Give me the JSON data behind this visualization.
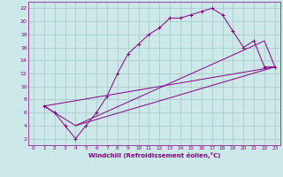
{
  "xlabel": "Windchill (Refroidissement éolien,°C)",
  "background_color": "#cce8e8",
  "grid_color": "#aacccc",
  "line_color": "#880088",
  "xlim": [
    -0.5,
    23.5
  ],
  "ylim": [
    1,
    23
  ],
  "xticks": [
    0,
    1,
    2,
    3,
    4,
    5,
    6,
    7,
    8,
    9,
    10,
    11,
    12,
    13,
    14,
    15,
    16,
    17,
    18,
    19,
    20,
    21,
    22,
    23
  ],
  "yticks": [
    2,
    4,
    6,
    8,
    10,
    12,
    14,
    16,
    18,
    20,
    22
  ],
  "curve1_x": [
    1,
    2,
    3,
    4,
    5,
    6,
    7,
    8,
    9,
    10,
    11,
    12,
    13,
    14,
    15,
    16,
    17,
    18,
    19,
    20,
    21,
    22,
    23
  ],
  "curve1_y": [
    7,
    6,
    4,
    2,
    4,
    6,
    8.5,
    12,
    15,
    16.5,
    18,
    19,
    20.5,
    20.5,
    21,
    21.5,
    22,
    21,
    18.5,
    16,
    17,
    13,
    13
  ],
  "curve2_x": [
    1,
    4,
    22,
    23
  ],
  "curve2_y": [
    7,
    4,
    17,
    13
  ],
  "curve3_x": [
    1,
    23
  ],
  "curve3_y": [
    7,
    13
  ],
  "curve4_x": [
    4,
    23
  ],
  "curve4_y": [
    4,
    13
  ]
}
